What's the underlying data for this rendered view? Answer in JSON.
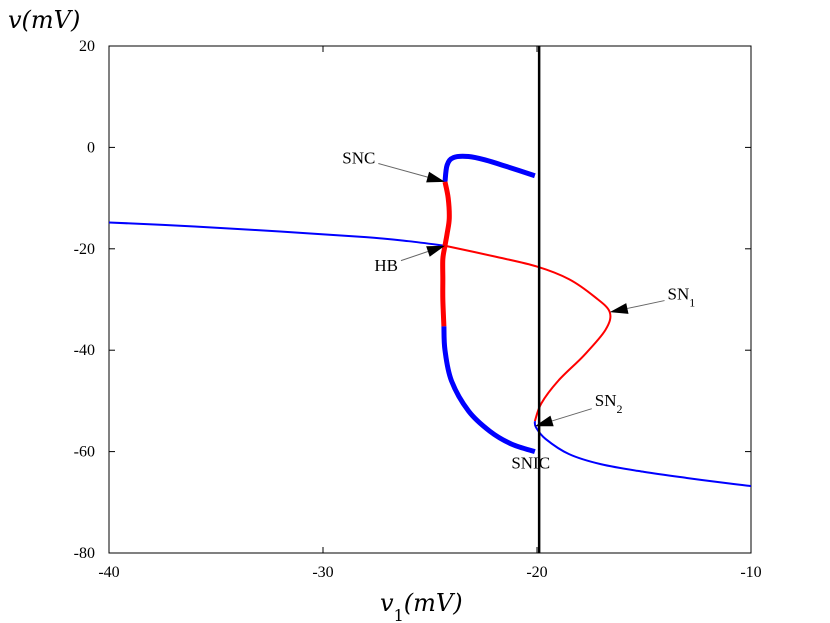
{
  "chart_data": {
    "type": "line",
    "title": "",
    "xlabel": "v_1(mV)",
    "ylabel": "v(mV)",
    "xlim": [
      -40,
      -10
    ],
    "ylim": [
      -80,
      20
    ],
    "xticks": [
      "-40",
      "-30",
      "-20",
      "-10"
    ],
    "yticks": [
      "20",
      "0",
      "-20",
      "-40",
      "-60",
      "-80"
    ],
    "grid": false,
    "legend": "none",
    "colors": {
      "stable": "#0000ff",
      "unstable": "#ff0000",
      "line": "#000000"
    },
    "series": [
      {
        "color": "#0000ff",
        "width": "thin",
        "points": [
          [
            -40,
            -14.8
          ],
          [
            -36,
            -15.6
          ],
          [
            -32,
            -16.6
          ],
          [
            -28,
            -17.7
          ],
          [
            -26,
            -18.5
          ],
          [
            -24.3,
            -19.4
          ]
        ]
      },
      {
        "color": "#ff0000",
        "width": "thin",
        "points": [
          [
            -24.3,
            -19.4
          ],
          [
            -22,
            -21.5
          ],
          [
            -20,
            -23.5
          ],
          [
            -18.5,
            -26
          ],
          [
            -17.3,
            -29.5
          ],
          [
            -16.6,
            -32.5
          ],
          [
            -16.8,
            -36
          ],
          [
            -17.8,
            -41
          ],
          [
            -19,
            -46
          ],
          [
            -19.8,
            -50.5
          ],
          [
            -20.1,
            -54
          ]
        ]
      },
      {
        "color": "#0000ff",
        "width": "thin",
        "points": [
          [
            -20.1,
            -54
          ],
          [
            -20.05,
            -55.2
          ],
          [
            -19.6,
            -57.5
          ],
          [
            -18.5,
            -60.5
          ],
          [
            -17,
            -62.5
          ],
          [
            -15,
            -64
          ],
          [
            -13,
            -65.2
          ],
          [
            -11,
            -66.3
          ],
          [
            -10,
            -66.8
          ]
        ]
      },
      {
        "color": "#0000ff",
        "width": "thick",
        "points": [
          [
            -24.3,
            -6.8
          ],
          [
            -24.2,
            -3.5
          ],
          [
            -23.9,
            -2
          ],
          [
            -23.2,
            -1.8
          ],
          [
            -22.4,
            -2.5
          ],
          [
            -21.4,
            -3.8
          ],
          [
            -20.1,
            -5.6
          ]
        ]
      },
      {
        "color": "#ff0000",
        "width": "thick",
        "points": [
          [
            -24.3,
            -6.8
          ],
          [
            -24.15,
            -10
          ],
          [
            -24.1,
            -14
          ],
          [
            -24.2,
            -17
          ],
          [
            -24.3,
            -19.4
          ],
          [
            -24.4,
            -22
          ],
          [
            -24.4,
            -26
          ],
          [
            -24.4,
            -30
          ],
          [
            -24.35,
            -35.3
          ]
        ]
      },
      {
        "color": "#0000ff",
        "width": "thick",
        "points": [
          [
            -24.35,
            -35.3
          ],
          [
            -24.3,
            -40
          ],
          [
            -24,
            -46
          ],
          [
            -23.2,
            -52
          ],
          [
            -22.2,
            -56
          ],
          [
            -21.2,
            -58.5
          ],
          [
            -20.1,
            -60
          ]
        ]
      },
      {
        "color": "#000000",
        "width": "vertical",
        "points": [
          [
            -19.9,
            20
          ],
          [
            -19.9,
            -80
          ]
        ]
      }
    ],
    "annotations": [
      {
        "text": "SNC",
        "sub": "",
        "xy": [
          -24.3,
          -6.8
        ],
        "text_at": [
          -29.1,
          -3.2
        ]
      },
      {
        "text": "HB",
        "sub": "",
        "xy": [
          -24.3,
          -19.4
        ],
        "text_at": [
          -27.6,
          -24.4
        ]
      },
      {
        "text": "SN",
        "sub": "1",
        "xy": [
          -16.6,
          -32.5
        ],
        "text_at": [
          -13.9,
          -30
        ]
      },
      {
        "text": "SN",
        "sub": "2",
        "xy": [
          -20.1,
          -55
        ],
        "text_at": [
          -17.3,
          -51
        ]
      },
      {
        "text": "SNIC",
        "sub": "",
        "xy": null,
        "text_at": [
          -21.2,
          -63.3
        ]
      }
    ]
  }
}
